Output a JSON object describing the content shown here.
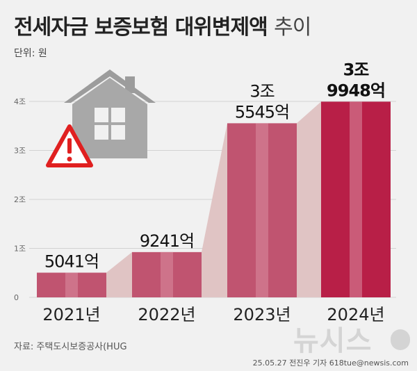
{
  "title": {
    "main": "전세자금 보증보험 대위변제액",
    "sub": "추이"
  },
  "unit_label": "단위: 원",
  "source": "자료: 주택도시보증공사(HUG",
  "byline": "25.05.27 전진우 기자 618tue@newsis.com",
  "logo_text": "뉴시스",
  "colors": {
    "bar_normal": "#c05470",
    "bar_highlight": "#b81f47",
    "bar_stripe": "#d98ca0",
    "connector": "#e0c4c4",
    "house": "#a8a8a8",
    "warning": "#e02020"
  },
  "chart_data": {
    "type": "bar",
    "categories": [
      "2021년",
      "2022년",
      "2023년",
      "2024년"
    ],
    "values": [
      5041,
      9241,
      35545,
      39948
    ],
    "value_unit": "억원",
    "data_labels": [
      [
        "5041억"
      ],
      [
        "9241억"
      ],
      [
        "3조",
        "5545억"
      ],
      [
        "3조",
        "9948억"
      ]
    ],
    "highlight_index": 3,
    "yticks": [
      {
        "value": 0,
        "label": "0"
      },
      {
        "value": 10000,
        "label": "1조"
      },
      {
        "value": 20000,
        "label": "2조"
      },
      {
        "value": 30000,
        "label": "3조"
      },
      {
        "value": 40000,
        "label": "4조"
      }
    ],
    "ylim": [
      0,
      40000
    ],
    "grid": true
  }
}
